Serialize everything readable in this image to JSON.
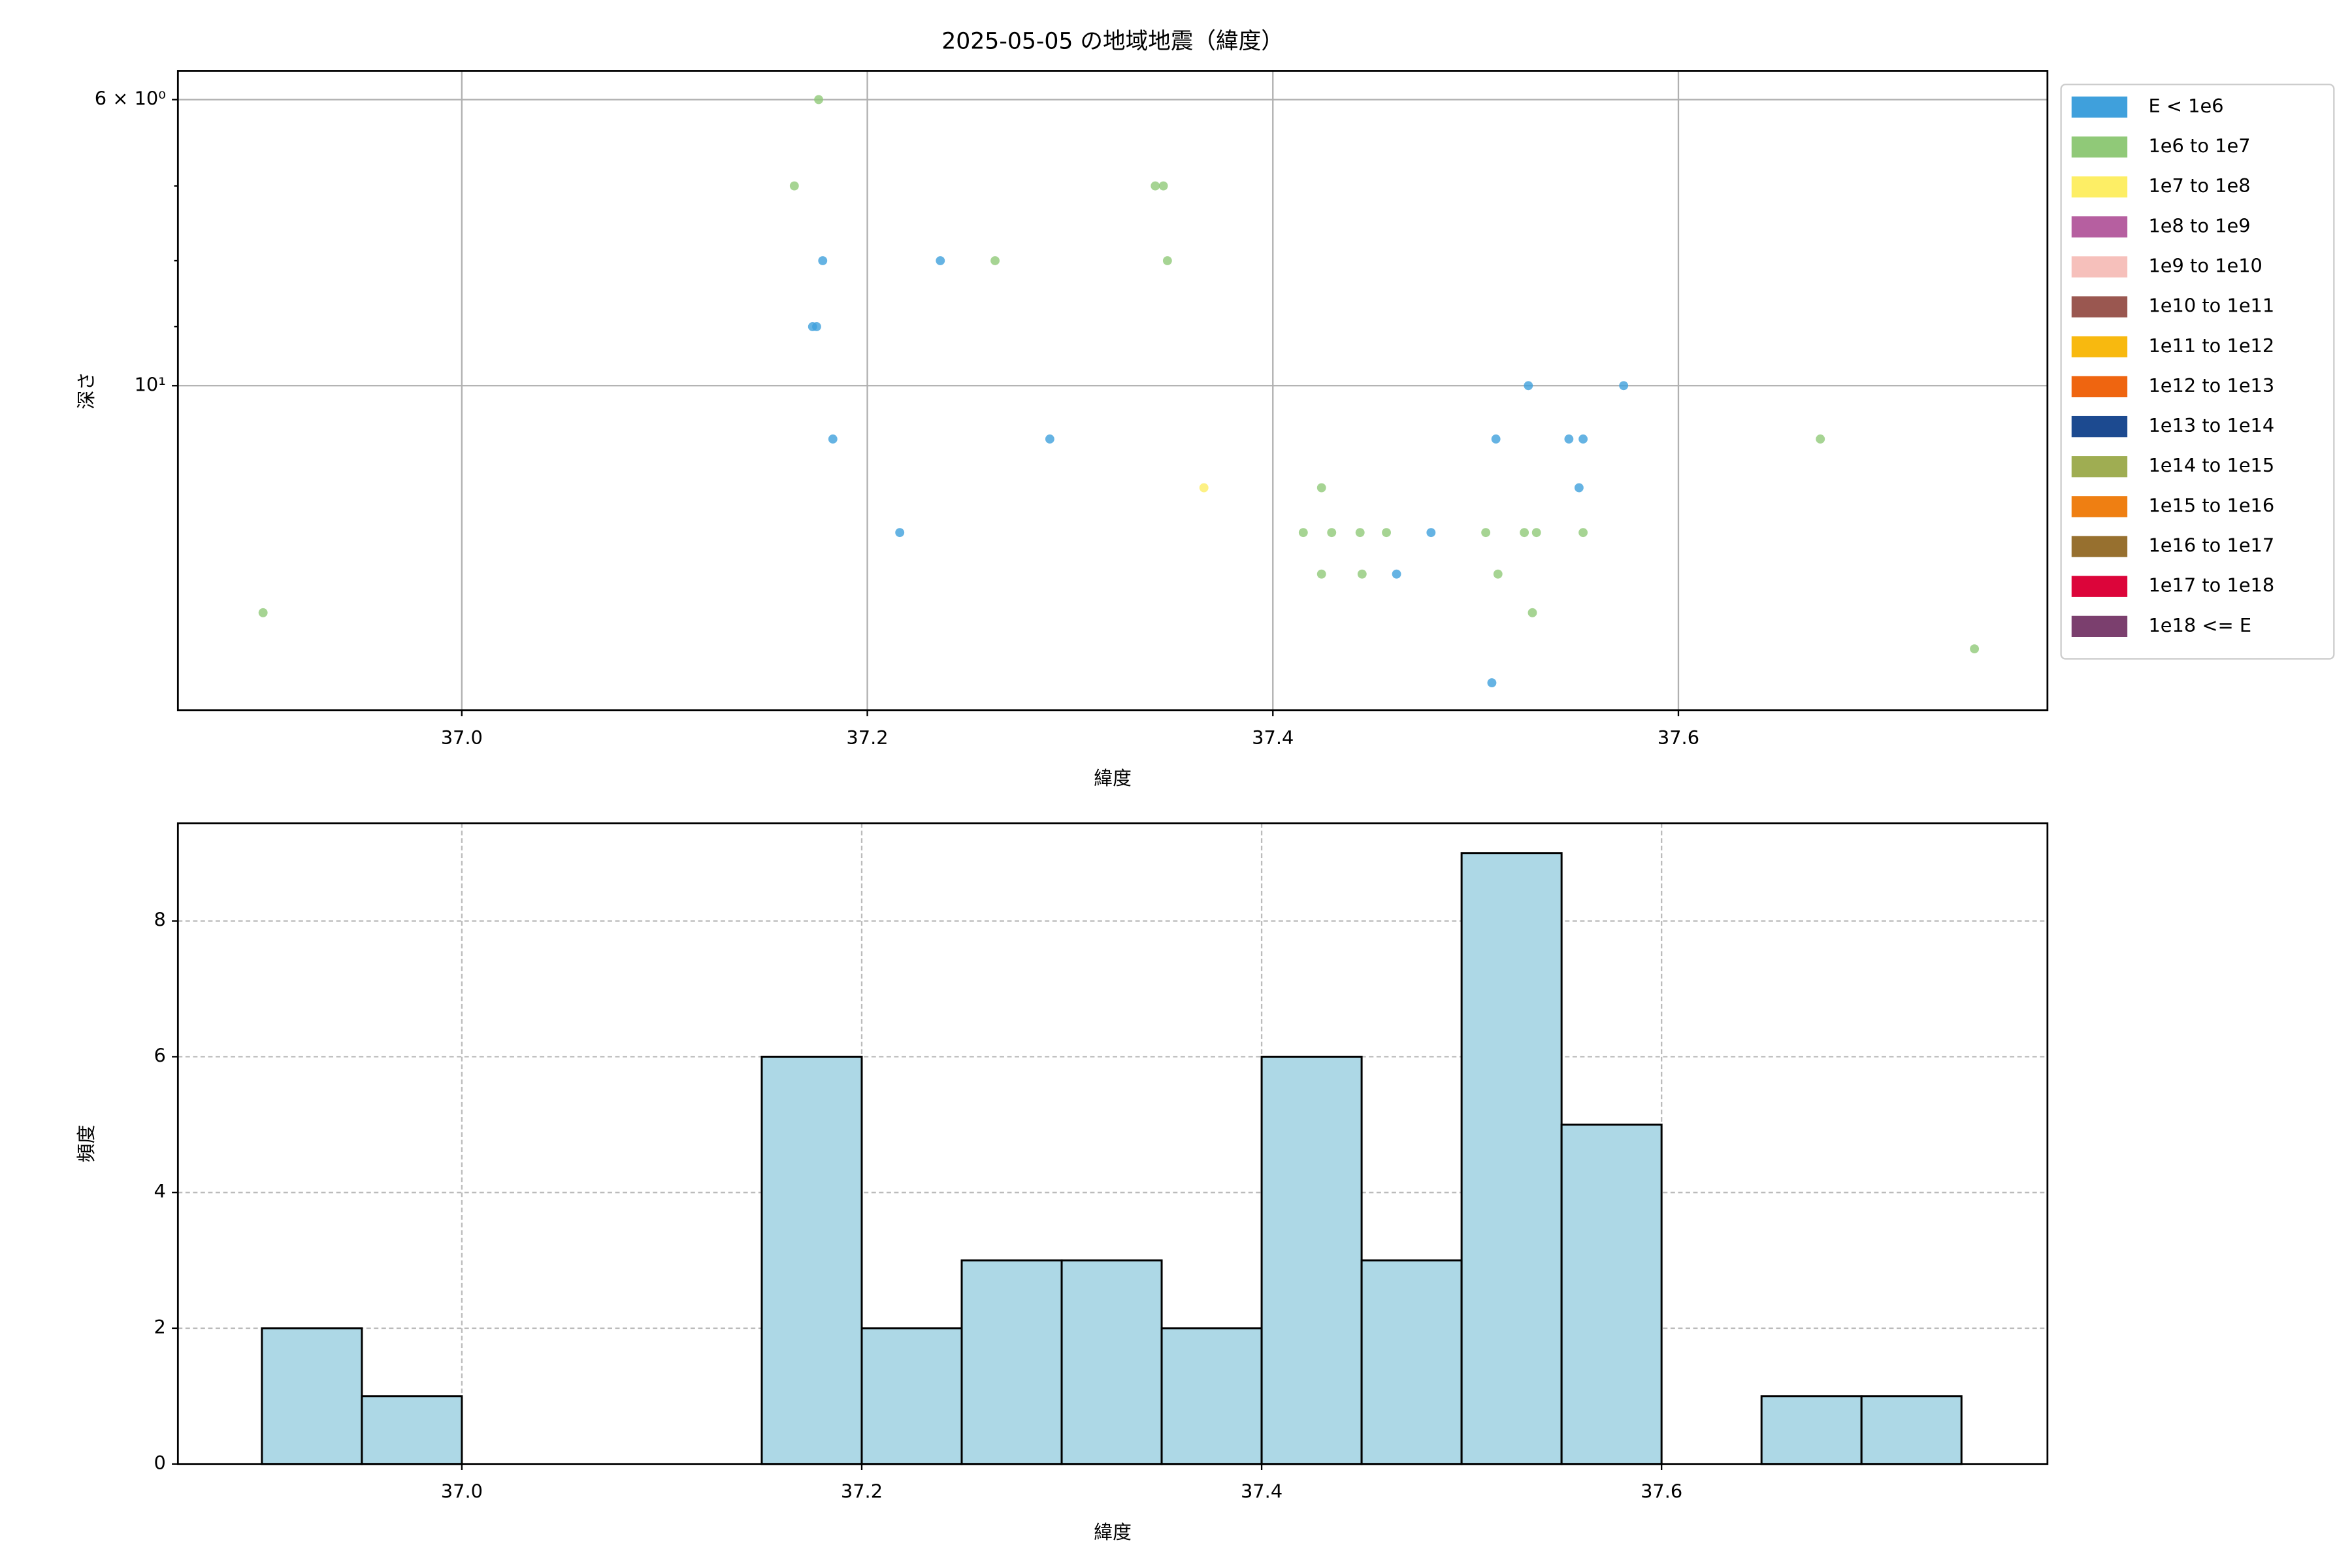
{
  "chart_data": [
    {
      "type": "scatter",
      "title": "2025-05-05 の地域地震（緯度）",
      "x_label": "緯度",
      "y_label": "深さ",
      "xlim": [
        36.86,
        37.782
      ],
      "xticks": [
        {
          "value": 37.0,
          "label": "37.0"
        },
        37.2,
        37.4,
        37.6
      ],
      "ylim": [
        5.7,
        17.85
      ],
      "y_scale": "log",
      "y_inverted": true,
      "yticks": [
        {
          "value": 6,
          "label": "6 × 10⁰"
        },
        {
          "value": 10,
          "label": "10¹"
        }
      ],
      "yticks_minor": [
        7,
        8,
        9
      ],
      "grid": true,
      "legend": "upper right outside",
      "series": [
        {
          "name": "E < 1e6",
          "color": "#3fa0dc",
          "x": [
            37.178,
            37.236,
            37.173,
            37.175,
            37.526,
            37.573,
            37.183,
            37.29,
            37.51,
            37.546,
            37.553,
            37.551,
            37.216,
            37.478,
            37.461,
            37.508
          ],
          "values": [
            8,
            8,
            9,
            9,
            10,
            10,
            11,
            11,
            11,
            11,
            11,
            12,
            13,
            13,
            14,
            17
          ]
        },
        {
          "name": "1e6 to 1e7",
          "color": "#90c978",
          "x": [
            37.176,
            37.164,
            37.342,
            37.346,
            37.263,
            37.348,
            37.67,
            37.424,
            37.415,
            37.429,
            37.443,
            37.456,
            37.505,
            37.524,
            37.53,
            37.553,
            37.424,
            37.444,
            37.511,
            36.902,
            37.528,
            37.746
          ],
          "values": [
            6,
            7,
            7,
            7,
            8,
            8,
            11,
            12,
            13,
            13,
            13,
            13,
            13,
            13,
            13,
            13,
            14,
            14,
            14,
            15,
            15,
            16
          ]
        },
        {
          "name": "1e7 to 1e8",
          "color": "#fdee65",
          "x": [
            37.366
          ],
          "values": [
            12
          ]
        },
        {
          "name": "1e8 to 1e9",
          "color": "#b65fa0",
          "x": [],
          "values": []
        },
        {
          "name": "1e9 to 1e10",
          "color": "#f6c0bb",
          "x": [],
          "values": []
        },
        {
          "name": "1e10 to 1e11",
          "color": "#9a5750",
          "x": [],
          "values": []
        },
        {
          "name": "1e11 to 1e12",
          "color": "#f8b90f",
          "x": [],
          "values": []
        },
        {
          "name": "1e12 to 1e13",
          "color": "#ef6510",
          "x": [],
          "values": []
        },
        {
          "name": "1e13 to 1e14",
          "color": "#1c4a90",
          "x": [],
          "values": []
        },
        {
          "name": "1e14 to 1e15",
          "color": "#9fad52",
          "x": [],
          "values": []
        },
        {
          "name": "1e15 to 1e16",
          "color": "#ef7f12",
          "x": [],
          "values": []
        },
        {
          "name": "1e16 to 1e17",
          "color": "#97702f",
          "x": [],
          "values": []
        },
        {
          "name": "1e17 to 1e18",
          "color": "#dc053a",
          "x": [],
          "values": []
        },
        {
          "name": "1e18 <= E",
          "color": "#7b3f6e",
          "x": [],
          "values": []
        }
      ]
    },
    {
      "type": "histogram",
      "x_label": "緯度",
      "y_label": "頻度",
      "color": "#add8e6",
      "edge_color": "#000000",
      "xlim": [
        36.858,
        37.793
      ],
      "xticks": [
        {
          "value": 37.0,
          "label": "37.0"
        },
        37.2,
        37.4,
        37.6
      ],
      "ylim": [
        0,
        9.44
      ],
      "yticks": [
        0,
        2,
        4,
        6,
        8
      ],
      "grid": true,
      "grid_style": "dashed",
      "bins": [
        36.9,
        36.95,
        37.0,
        37.05,
        37.1,
        37.15,
        37.2,
        37.25,
        37.3,
        37.35,
        37.4,
        37.45,
        37.5,
        37.55,
        37.6,
        37.65,
        37.7,
        37.75
      ],
      "counts": [
        2,
        1,
        0,
        0,
        0,
        6,
        2,
        3,
        3,
        2,
        6,
        3,
        9,
        5,
        0,
        1,
        1
      ]
    }
  ]
}
